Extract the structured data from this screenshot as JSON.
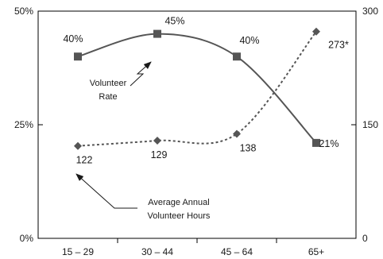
{
  "chart_data": {
    "type": "line",
    "categories": [
      "15 – 29",
      "30 – 44",
      "45 – 64",
      "65+"
    ],
    "y_left": {
      "ticks": [
        "0%",
        "25%",
        "50%"
      ],
      "range": [
        0,
        50
      ]
    },
    "y_right": {
      "ticks": [
        "0",
        "150",
        "300"
      ],
      "range": [
        0,
        300
      ]
    },
    "grid": false,
    "series": [
      {
        "axis": "left",
        "values": [
          40,
          45,
          40,
          21
        ],
        "labels": [
          "40%",
          "45%",
          "40%",
          "21%"
        ],
        "marker": "square",
        "line": "solid",
        "color": "#555555"
      },
      {
        "axis": "right",
        "values": [
          122,
          129,
          138,
          273
        ],
        "labels": [
          "122",
          "129",
          "138",
          "273*"
        ],
        "marker": "diamond",
        "line": "dotted",
        "color": "#555555"
      }
    ],
    "annotations": [
      {
        "lines": [
          "Volunteer",
          "Rate"
        ]
      },
      {
        "lines": [
          "Average Annual",
          "Volunteer Hours"
        ]
      }
    ]
  }
}
